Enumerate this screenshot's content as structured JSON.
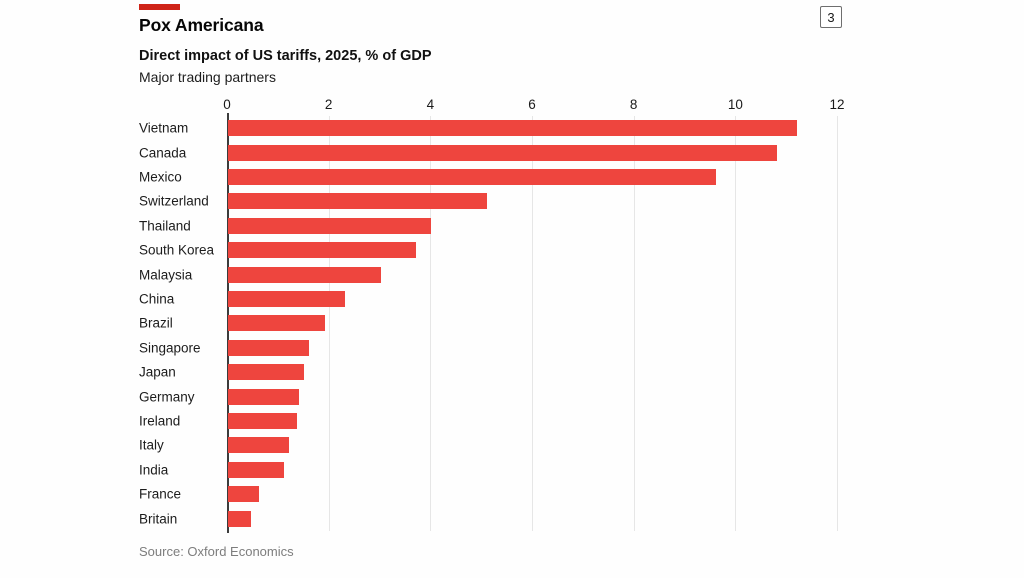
{
  "header": {
    "title": "Pox Americana",
    "subtitle": "Direct impact of US tariffs, 2025, % of GDP",
    "note": "Major trading partners",
    "badge": "3"
  },
  "source": "Source: Oxford Economics",
  "colors": {
    "bar_red": "#ee453e",
    "accent_red": "#cf2418",
    "gridline": "#e6e6e6",
    "zero_axis": "#3c3c3c",
    "source_text": "#7d7d7d"
  },
  "chart_data": {
    "type": "bar",
    "orientation": "horizontal",
    "title": "Pox Americana",
    "subtitle": "Direct impact of US tariffs, 2025, % of GDP",
    "note": "Major trading partners",
    "categories": [
      "Vietnam",
      "Canada",
      "Mexico",
      "Switzerland",
      "Thailand",
      "South Korea",
      "Malaysia",
      "China",
      "Brazil",
      "Singapore",
      "Japan",
      "Germany",
      "Ireland",
      "Italy",
      "India",
      "France",
      "Britain"
    ],
    "values": [
      11.2,
      10.8,
      9.6,
      5.1,
      4.0,
      3.7,
      3.0,
      2.3,
      1.9,
      1.6,
      1.5,
      1.4,
      1.35,
      1.2,
      1.1,
      0.6,
      0.45
    ],
    "xlabel": "",
    "ylabel": "",
    "xlim": [
      0,
      12
    ],
    "ticks": [
      0,
      2,
      4,
      6,
      8,
      10,
      12
    ],
    "tick_position": "top",
    "grid": "vertical",
    "legend": "none",
    "source": "Source: Oxford Economics"
  }
}
